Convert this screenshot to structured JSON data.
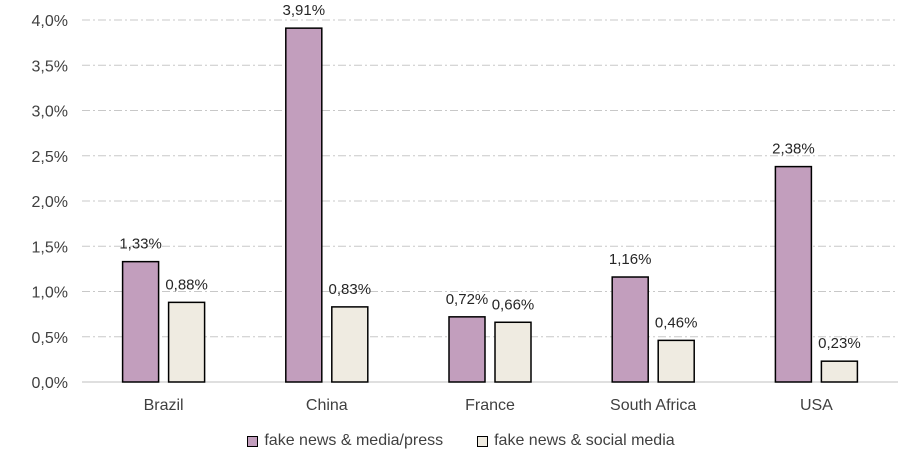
{
  "chart_data": {
    "type": "bar",
    "categories": [
      "Brazil",
      "China",
      "France",
      "South Africa",
      "USA"
    ],
    "series": [
      {
        "name": "fake news & media/press",
        "values": [
          1.33,
          3.91,
          0.72,
          1.16,
          2.38
        ],
        "labels": [
          "1,33%",
          "3,91%",
          "0,72%",
          "1,16%",
          "2,38%"
        ],
        "color": "#c29ebd"
      },
      {
        "name": "fake news & social media",
        "values": [
          0.88,
          0.83,
          0.66,
          0.46,
          0.23
        ],
        "labels": [
          "0,88%",
          "0,83%",
          "0,66%",
          "0,46%",
          "0,23%"
        ],
        "color": "#efebe1"
      }
    ],
    "ylim": [
      0,
      4.0
    ],
    "yticks": [
      0,
      0.5,
      1.0,
      1.5,
      2.0,
      2.5,
      3.0,
      3.5,
      4.0
    ],
    "ytick_labels": [
      "0,0%",
      "0,5%",
      "1,0%",
      "1,5%",
      "2,0%",
      "2,5%",
      "3,0%",
      "3,5%",
      "4,0%"
    ],
    "grid": true,
    "legend_position": "bottom"
  }
}
